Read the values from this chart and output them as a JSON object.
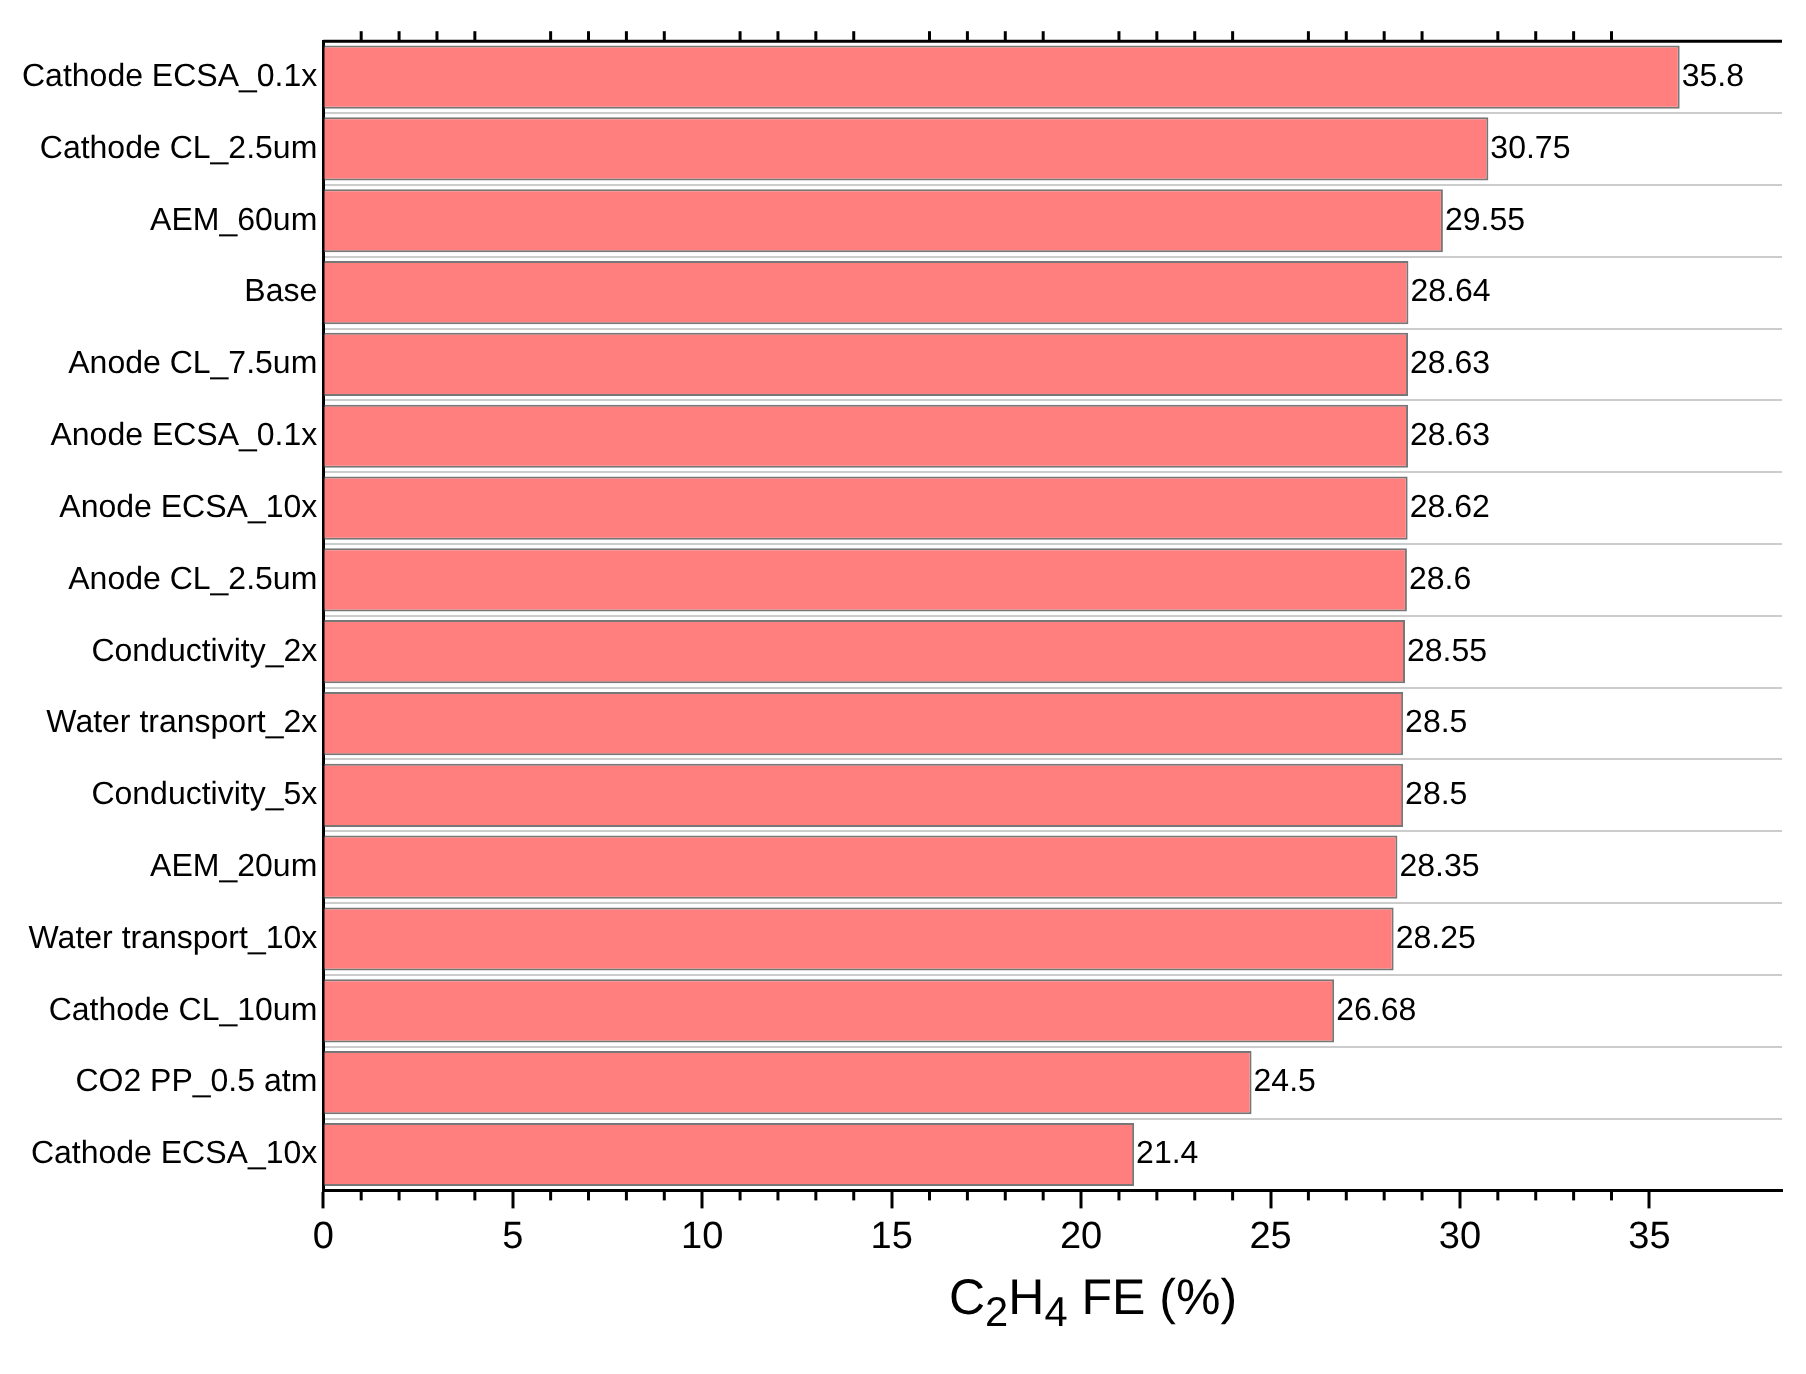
{
  "chart_data": {
    "type": "bar",
    "orientation": "horizontal",
    "xlabel": "C$_{2}$H$_{4}$ FE (%)",
    "categories": [
      "Cathode ECSA_0.1x",
      "Cathode CL_2.5um",
      "AEM_60um",
      "Base",
      "Anode CL_7.5um",
      "Anode ECSA_0.1x",
      "Anode ECSA_10x",
      "Anode CL_2.5um",
      "Conductivity_2x",
      "Water transport_2x",
      "Conductivity_5x",
      "AEM_20um",
      "Water transport_10x",
      "Cathode CL_10um",
      "CO2 PP_0.5 atm",
      "Cathode ECSA_10x"
    ],
    "values": [
      35.8,
      30.75,
      29.55,
      28.64,
      28.63,
      28.63,
      28.62,
      28.6,
      28.55,
      28.5,
      28.5,
      28.35,
      28.25,
      26.68,
      24.5,
      21.4
    ],
    "color": "#ff7f7f",
    "xlim": [
      0,
      38.5
    ],
    "xticks": [
      0,
      5,
      10,
      15,
      20,
      25,
      30,
      35
    ],
    "grid": "y",
    "data_labels": true
  }
}
